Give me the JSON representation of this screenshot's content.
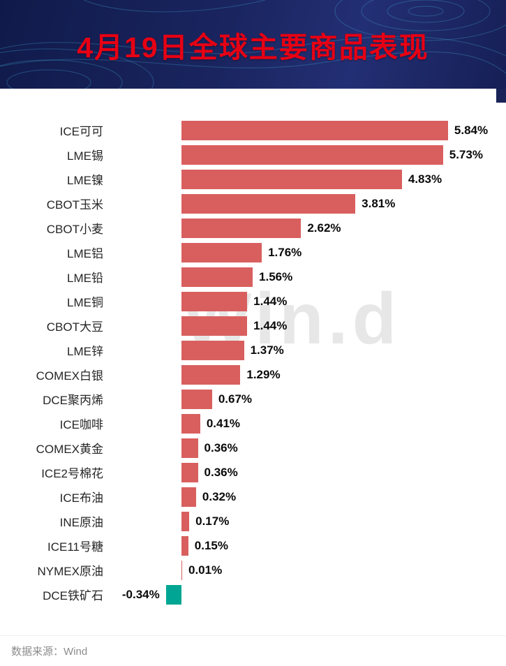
{
  "header": {
    "title": "4月19日全球主要商品表现"
  },
  "watermark": "Win.d",
  "footer": {
    "source_label": "数据来源：Wind"
  },
  "colors": {
    "header_bg": "#1a2560",
    "title_red": "#e60014",
    "bar_red": "#d95f5f",
    "bar_teal": "#00a693"
  },
  "chart_data": {
    "type": "bar",
    "orientation": "horizontal",
    "title": "4月19日全球主要商品表现",
    "source": "Wind",
    "unit": "%",
    "xlim": [
      -0.5,
      6.2
    ],
    "grid": false,
    "legend": false,
    "bar_color": "#d95f5f",
    "negative_bar_color": "#00a693",
    "categories": [
      "ICE可可",
      "LME锡",
      "LME镍",
      "CBOT玉米",
      "CBOT小麦",
      "LME铝",
      "LME铅",
      "LME铜",
      "CBOT大豆",
      "LME锌",
      "COMEX白银",
      "DCE聚丙烯",
      "ICE咖啡",
      "COMEX黄金",
      "ICE2号棉花",
      "ICE布油",
      "INE原油",
      "ICE11号糖",
      "NYMEX原油",
      "DCE铁矿石"
    ],
    "values": [
      5.84,
      5.73,
      4.83,
      3.81,
      2.62,
      1.76,
      1.56,
      1.44,
      1.44,
      1.37,
      1.29,
      0.67,
      0.41,
      0.36,
      0.36,
      0.32,
      0.17,
      0.15,
      0.01,
      -0.34
    ],
    "value_labels": [
      "5.84%",
      "5.73%",
      "4.83%",
      "3.81%",
      "2.62%",
      "1.76%",
      "1.56%",
      "1.44%",
      "1.44%",
      "1.37%",
      "1.29%",
      "0.67%",
      "0.41%",
      "0.36%",
      "0.36%",
      "0.32%",
      "0.17%",
      "0.15%",
      "0.01%",
      "-0.34%"
    ]
  }
}
